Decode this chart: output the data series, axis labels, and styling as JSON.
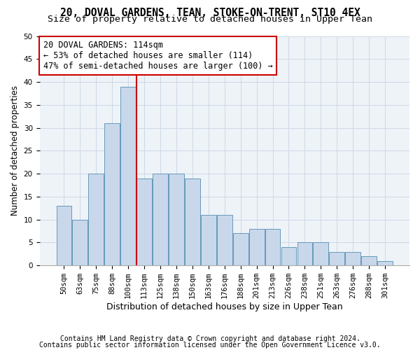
{
  "title": "20, DOVAL GARDENS, TEAN, STOKE-ON-TRENT, ST10 4EX",
  "subtitle": "Size of property relative to detached houses in Upper Tean",
  "xlabel": "Distribution of detached houses by size in Upper Tean",
  "ylabel": "Number of detached properties",
  "bar_labels": [
    "50sqm",
    "63sqm",
    "75sqm",
    "88sqm",
    "100sqm",
    "113sqm",
    "125sqm",
    "138sqm",
    "150sqm",
    "163sqm",
    "176sqm",
    "188sqm",
    "201sqm",
    "213sqm",
    "226sqm",
    "238sqm",
    "251sqm",
    "263sqm",
    "276sqm",
    "288sqm",
    "301sqm"
  ],
  "bar_values": [
    13,
    10,
    20,
    31,
    39,
    19,
    20,
    20,
    19,
    11,
    11,
    7,
    8,
    8,
    4,
    5,
    5,
    3,
    3,
    2,
    1
  ],
  "bar_color": "#c8d8ea",
  "bar_edge_color": "#6699bb",
  "grid_color": "#ccd9e6",
  "bg_color": "#eef3f8",
  "vline_color": "#cc0000",
  "annotation_text": "20 DOVAL GARDENS: 114sqm\n← 53% of detached houses are smaller (114)\n47% of semi-detached houses are larger (100) →",
  "annotation_box_color": "#cc0000",
  "ylim": [
    0,
    50
  ],
  "yticks": [
    0,
    5,
    10,
    15,
    20,
    25,
    30,
    35,
    40,
    45,
    50
  ],
  "footer1": "Contains HM Land Registry data © Crown copyright and database right 2024.",
  "footer2": "Contains public sector information licensed under the Open Government Licence v3.0.",
  "title_fontsize": 10.5,
  "subtitle_fontsize": 9.5,
  "xlabel_fontsize": 9,
  "ylabel_fontsize": 8.5,
  "tick_fontsize": 7.5,
  "footer_fontsize": 7,
  "ann_fontsize": 8.5
}
